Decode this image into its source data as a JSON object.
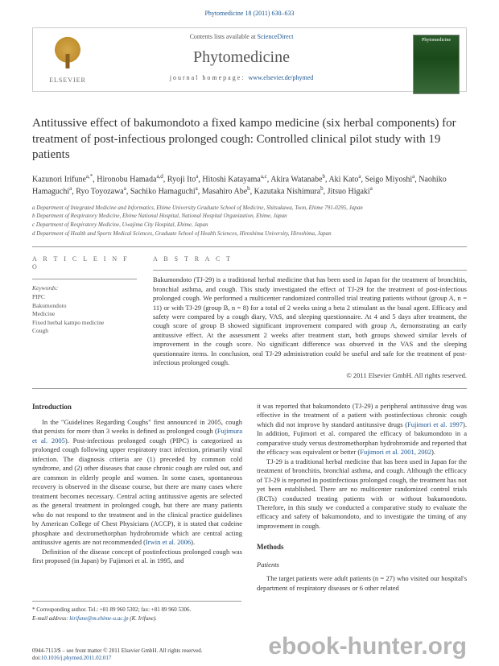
{
  "header": {
    "citation": "Phytomedicine 18 (2011) 630–633",
    "contents_prefix": "Contents lists available at ",
    "contents_link": "ScienceDirect",
    "journal_name": "Phytomedicine",
    "homepage_prefix": "journal homepage: ",
    "homepage_link": "www.elsevier.de/phymed",
    "elsevier_label": "ELSEVIER",
    "cover_label": "Phytomedicine"
  },
  "article": {
    "title": "Antitussive effect of bakumondoto a fixed kampo medicine (six herbal components) for treatment of post-infectious prolonged cough: Controlled clinical pilot study with 19 patients",
    "authors_html": "Kazunori Irifune<sup>a,*</sup>, Hironobu Hamada<sup>a,d</sup>, Ryoji Ito<sup>a</sup>, Hitoshi Katayama<sup>a,c</sup>, Akira Watanabe<sup>b</sup>, Aki Kato<sup>a</sup>, Seigo Miyoshi<sup>a</sup>, Naohiko Hamaguchi<sup>a</sup>, Ryo Toyozawa<sup>a</sup>, Sachiko Hamaguchi<sup>a</sup>, Masahiro Abe<sup>b</sup>, Kazutaka Nishimura<sup>b</sup>, Jitsuo Higaki<sup>a</sup>",
    "affiliations": [
      "a Department of Integrated Medicine and Informatics, Ehime University Graduate School of Medicine, Shitsukawa, Toon, Ehime 791-0295, Japan",
      "b Department of Respiratory Medicine, Ehime National Hospital, National Hospital Organization, Ehime, Japan",
      "c Department of Respiratory Medicine, Uwajima City Hospital, Ehime, Japan",
      "d Department of Health and Sports Medical Sciences, Graduate School of Health Sciences, Hiroshima University, Hiroshima, Japan"
    ]
  },
  "info": {
    "article_info_label": "A R T I C L E   I N F O",
    "keywords_label": "Keywords:",
    "keywords": [
      "PIPC",
      "Bakumondoto",
      "Medicine",
      "Fixed herbal kampo medicine",
      "Cough"
    ]
  },
  "abstract": {
    "label": "A B S T R A C T",
    "text": "Bakumondoto (TJ-29) is a traditional herbal medicine that has been used in Japan for the treatment of bronchitis, bronchial asthma, and cough. This study investigated the effect of TJ-29 for the treatment of post-infectious prolonged cough. We performed a multicenter randomized controlled trial treating patients without (group A, n = 11) or with TJ-29 (group B, n = 8) for a total of 2 weeks using a beta 2 stimulant as the basal agent. Efficacy and safety were compared by a cough diary, VAS, and sleeping questionnaire. At 4 and 5 days after treatment, the cough score of group B showed significant improvement compared with group A, demonstrating an early antitussive effect. At the assessment 2 weeks after treatment start, both groups showed similar levels of improvement in the cough score. No significant difference was observed in the VAS and the sleeping questionnaire items. In conclusion, oral TJ-29 administration could be useful and safe for the treatment of post-infectious prolonged cough.",
    "copyright": "© 2011 Elsevier GmbH. All rights reserved."
  },
  "body": {
    "intro_head": "Introduction",
    "intro_p1a": "In the \"Guidelines Regarding Coughs\" first announced in 2005, cough that persists for more than 3 weeks is defined as prolonged cough (",
    "intro_p1_cite1": "Fujimura et al. 2005",
    "intro_p1b": "). Post-infectious prolonged cough (PIPC) is categorized as prolonged cough following upper respiratory tract infection, primarily viral infection. The diagnosis criteria are (1) preceded by common cold syndrome, and (2) other diseases that cause chronic cough are ruled out, and are common in elderly people and women. In some cases, spontaneous recovery is observed in the disease course, but there are many cases where treatment becomes necessary. Central acting antitussive agents are selected as the general treatment in prolonged cough, but there are many patients who do not respond to the treatment and in the clinical practice guidelines by American College of Chest Physicians (ACCP), it is stated that codeine phosphate and dextromethorphan hydrobromide which are central acting antitussive agents are not recommended (",
    "intro_p1_cite2": "Irwin et al. 2006",
    "intro_p1c": ").",
    "intro_p2": "Definition of the disease concept of postinfectious prolonged cough was first proposed (in Japan) by Fujimori et al. in 1995, and",
    "col2_p1a": "it was reported that bakumondoto (TJ-29) a peripheral antitussive drug was effective in the treatment of a patient with postinfectious chronic cough which did not improve by standard antitussive drugs (",
    "col2_p1_cite1": "Fujimori et al. 1997",
    "col2_p1b": "). In addition, Fujimori et al. compared the efficacy of bakumondoto in a comparative study versus dextromethorphan hydrobromide and reported that the efficacy was equivalent or better (",
    "col2_p1_cite2": "Fujimori et al. 2001, 2002",
    "col2_p1c": ").",
    "col2_p2": "TJ-29 is a traditional herbal medicine that has been used in Japan for the treatment of bronchitis, bronchial asthma, and cough. Although the efficacy of TJ-29 is reported in postinfectious prolonged cough, the treatment has not yet been established. There are no multicenter randomized control trials (RCTs) conducted treating patients with or without bakumondoto. Therefore, in this study we conducted a comparative study to evaluate the efficacy and safety of bakumondoto, and to investigate the timing of any improvement in cough.",
    "methods_head": "Methods",
    "patients_head": "Patients",
    "patients_p": "The target patients were adult patients (n = 27) who visited our hospital's department of respiratory diseases or 6 other related"
  },
  "footer": {
    "corresponding": "* Corresponding author. Tel.: +81 89 960 5302; fax: +81 89 960 5306.",
    "email_label": "E-mail address: ",
    "email_link": "kirifune@m.ehime-u.ac.jp",
    "email_suffix": " (K. Irifune).",
    "issn_line": "0944-7113/$ – see front matter © 2011 Elsevier GmbH. All rights reserved.",
    "doi_prefix": "doi:",
    "doi_link": "10.1016/j.phymed.2011.02.017"
  },
  "watermark": "ebook-hunter.org"
}
